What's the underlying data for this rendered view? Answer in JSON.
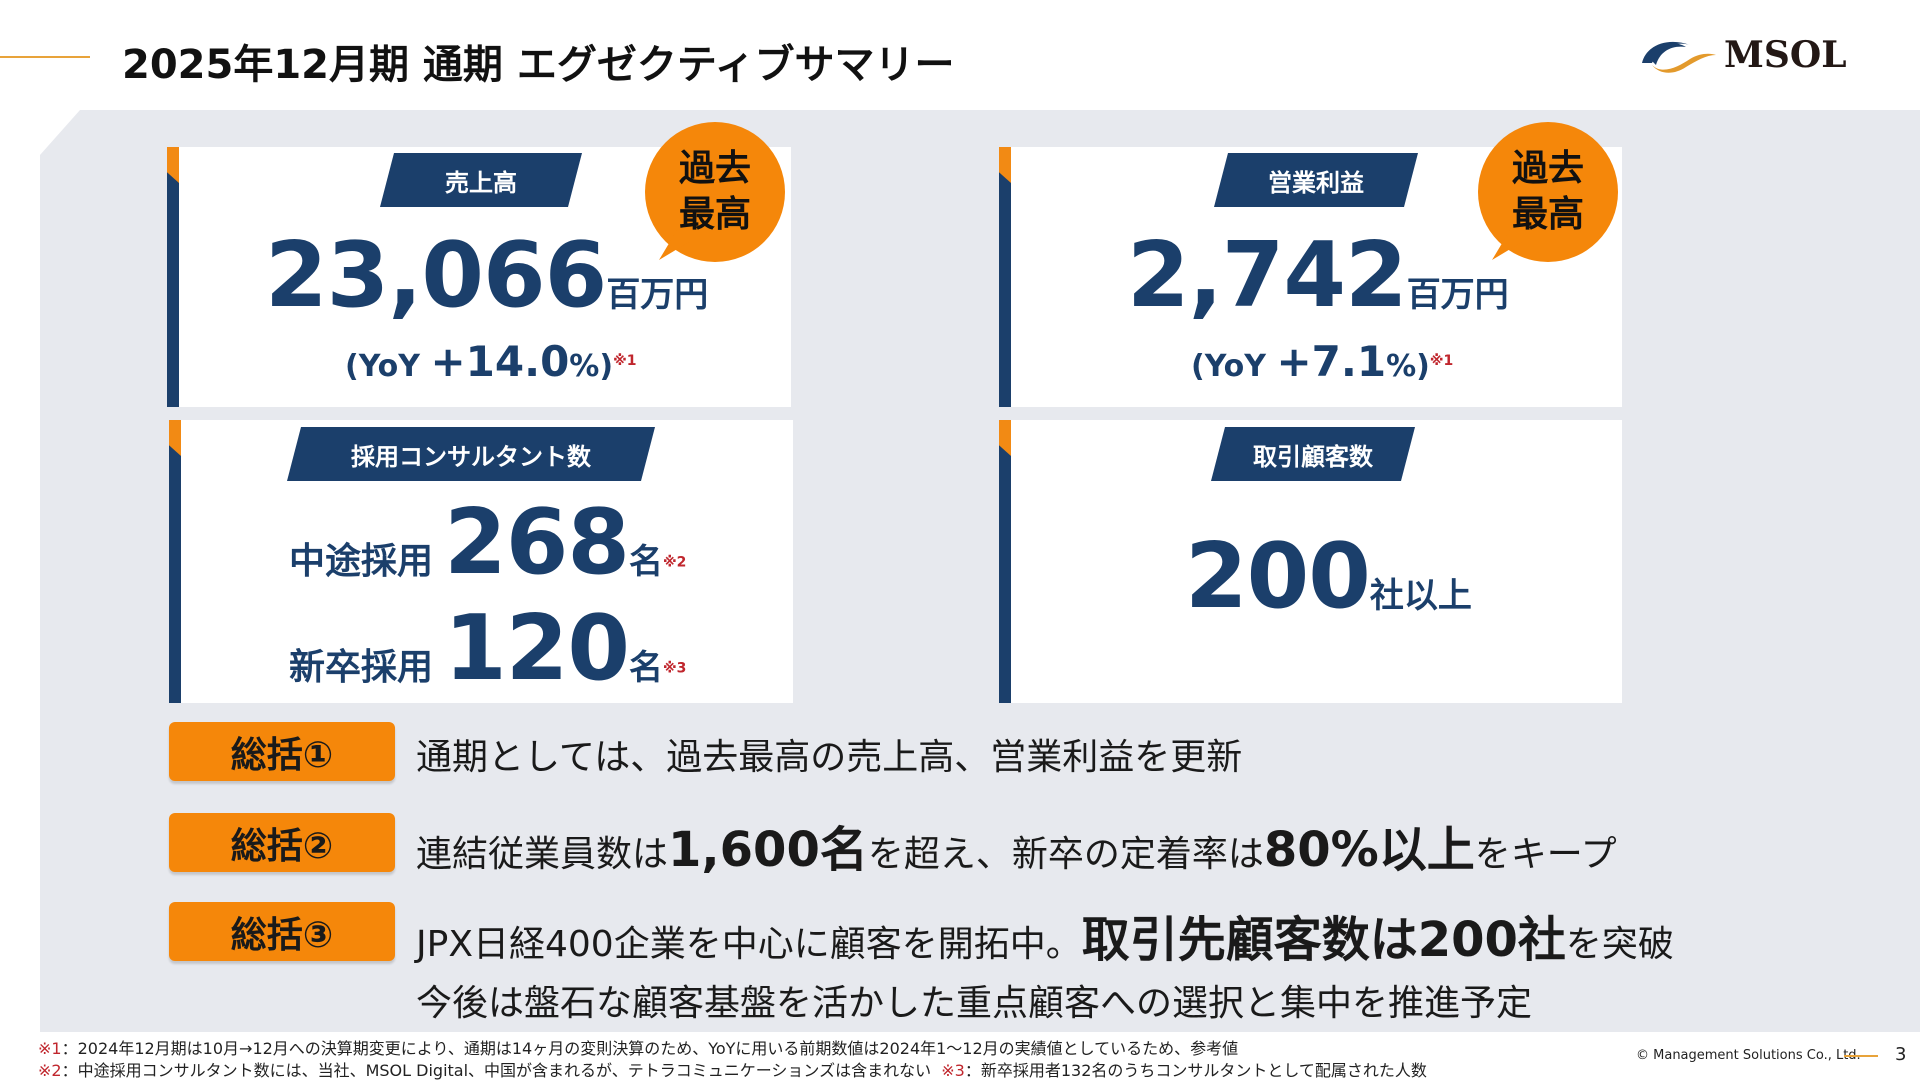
{
  "header": {
    "title": "2025年12月期 通期 エグゼクティブサマリー",
    "logo_text": "MSOL"
  },
  "colors": {
    "navy": "#1b3f6b",
    "orange": "#f5870a",
    "panel": "#e7e9ee",
    "note_red": "#c0262d"
  },
  "cards": {
    "sales": {
      "label": "売上高",
      "badge_line1": "過去",
      "badge_line2": "最高",
      "value": "23,066",
      "unit": "百万円",
      "yoy_prefix": "(YoY ",
      "yoy_value": "+14.0",
      "yoy_pct": "%)",
      "note": "※1"
    },
    "op_profit": {
      "label": "営業利益",
      "badge_line1": "過去",
      "badge_line2": "最高",
      "value": "2,742",
      "unit": "百万円",
      "yoy_prefix": "(YoY ",
      "yoy_value": "+7.1",
      "yoy_pct": "%)",
      "note": "※1"
    },
    "hires": {
      "label": "採用コンサルタント数",
      "mid_label": "中途採用",
      "mid_value": "268",
      "mid_unit": "名",
      "mid_note": "※2",
      "new_label": "新卒採用",
      "new_value": "120",
      "new_unit": "名",
      "new_note": "※3"
    },
    "clients": {
      "label": "取引顧客数",
      "value": "200",
      "unit": "社以上"
    }
  },
  "summary": [
    {
      "label": "総括①",
      "text": "通期としては、過去最高の売上高、営業利益を更新"
    },
    {
      "label": "総括②",
      "t1": "連結従業員数は",
      "b1": "1,600名",
      "t2": "を超え、新卒の定着率は",
      "b2": "80%以上",
      "t3": "をキープ"
    },
    {
      "label": "総括③",
      "t1": "JPX日経400企業を中心に顧客を開拓中。",
      "b1": "取引先顧客数は200社",
      "t2": "を突破",
      "line2": "今後は盤石な顧客基盤を活かした重点顧客への選択と集中を推進予定"
    }
  ],
  "footnotes": {
    "n1_mark": "※1",
    "n1": "：2024年12月期は10月→12月への決算期変更により、通期は14ヶ月の変則決算のため、YoYに用いる前期数値は2024年1～12月の実績値としているため、参考値",
    "n2_mark": "※2",
    "n2": "：中途採用コンサルタント数には、当社、MSOL Digital、中国が含まれるが、テトラコミュニケーションズは含まれない",
    "n3_mark": "※3",
    "n3": "：新卒採用者132名のうちコンサルタントとして配属された人数"
  },
  "footer": {
    "copyright": "© Management Solutions Co., Ltd.",
    "page": "3"
  }
}
